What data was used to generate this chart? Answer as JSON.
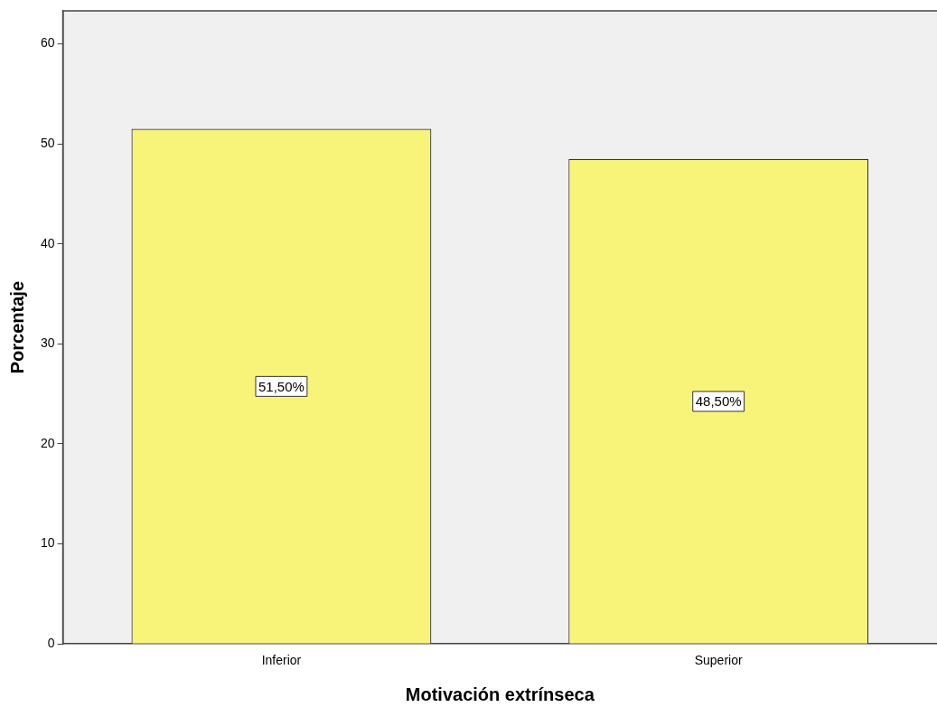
{
  "chart_data": {
    "type": "bar",
    "xlabel": "Motivación extrínseca",
    "ylabel": "Porcentaje",
    "categories": [
      "Inferior",
      "Superior"
    ],
    "values": [
      51.5,
      48.5
    ],
    "value_labels": [
      "51,50%",
      "48,50%"
    ],
    "color": "#f8f47a",
    "ylim": [
      0,
      63.3
    ],
    "yticks": [
      0,
      10,
      20,
      30,
      40,
      50,
      60
    ],
    "grid": false,
    "legend": false
  }
}
